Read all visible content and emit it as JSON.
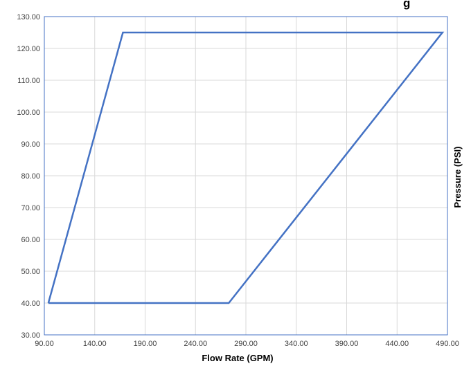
{
  "chart_data": {
    "type": "line",
    "title": "",
    "visible_title_fragment": "g",
    "xlabel": "Flow Rate (GPM)",
    "ylabel": "Pressure (PSI)",
    "xlim": [
      90,
      490
    ],
    "ylim": [
      30,
      130
    ],
    "x_ticks": [
      "90.00",
      "140.00",
      "190.00",
      "240.00",
      "290.00",
      "340.00",
      "390.00",
      "440.00",
      "490.00"
    ],
    "y_ticks": [
      "30.00",
      "40.00",
      "50.00",
      "60.00",
      "70.00",
      "80.00",
      "90.00",
      "100.00",
      "110.00",
      "120.00",
      "130.00"
    ],
    "grid": true,
    "series": [
      {
        "x": [
          94,
          168,
          485,
          273,
          94
        ],
        "y": [
          40,
          125,
          125,
          40,
          40
        ]
      }
    ]
  },
  "colors": {
    "series_line": "#4472c4",
    "grid": "#d9d9d9",
    "plot_border": "#4472c4"
  }
}
